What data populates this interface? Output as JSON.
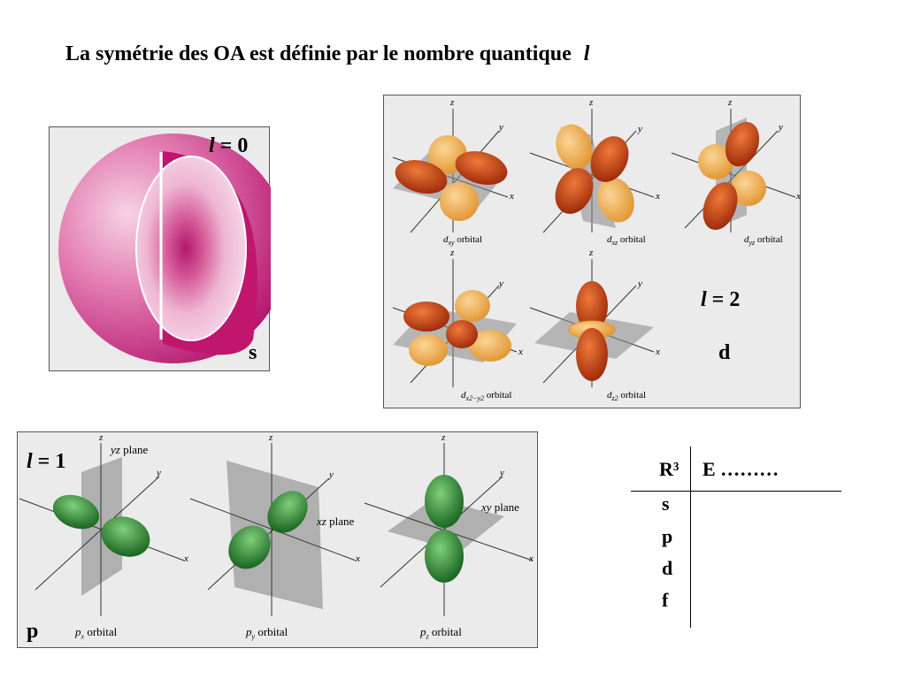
{
  "title": {
    "text": "La symétrie des OA est définie par le nombre quantique",
    "symbol": "l"
  },
  "s_panel": {
    "l_symbol": "l",
    "l_value": "= 0",
    "label": "s"
  },
  "d_panel": {
    "l_symbol": "l",
    "l_value": "= 2",
    "label": "d",
    "axes": {
      "x": "x",
      "y": "y",
      "z": "z"
    },
    "orbitals": [
      {
        "letter": "d",
        "sub": "xy",
        "suffix": "orbital"
      },
      {
        "letter": "d",
        "sub": "xz",
        "suffix": "orbital"
      },
      {
        "letter": "d",
        "sub": "yz",
        "suffix": "orbital"
      },
      {
        "letter": "d",
        "sub": "x2−y2",
        "suffix": "orbital"
      },
      {
        "letter": "d",
        "sub": "z2",
        "suffix": "orbital"
      }
    ]
  },
  "p_panel": {
    "l_symbol": "l",
    "l_value": "= 1",
    "label": "p",
    "axes": {
      "x": "x",
      "y": "y",
      "z": "z"
    },
    "planes": [
      {
        "italic": "yz",
        "word": "plane"
      },
      {
        "italic": "xz",
        "word": "plane"
      },
      {
        "italic": "xy",
        "word": "plane"
      }
    ],
    "orbitals": [
      {
        "letter": "p",
        "sub": "x",
        "suffix": "orbital"
      },
      {
        "letter": "p",
        "sub": "y",
        "suffix": "orbital"
      },
      {
        "letter": "p",
        "sub": "z",
        "suffix": "orbital"
      }
    ]
  },
  "table": {
    "col1_header": "R³",
    "col2_header": "E ………",
    "rows": [
      "s",
      "p",
      "d",
      "f"
    ]
  }
}
